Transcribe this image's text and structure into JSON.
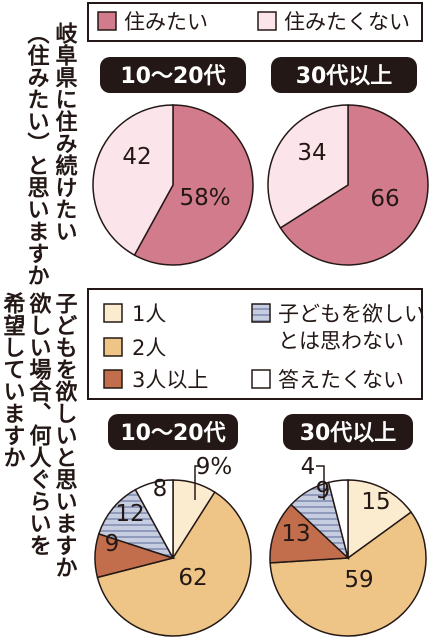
{
  "questions": {
    "q1_lines": [
      "岐阜県に住み続けたい",
      "（住みたい）と思いますか"
    ],
    "q2_lines": [
      "子どもを欲しいと思いますか",
      "欲しい場合、何人ぐらいを",
      "希望していますか"
    ]
  },
  "legend1": [
    {
      "label": "住みたい",
      "color": "#d27b8c"
    },
    {
      "label": "住みたくない",
      "color": "#fbe5ea"
    }
  ],
  "legend2": [
    {
      "label": "1人",
      "color": "#fbebcf"
    },
    {
      "label": "子どもを欲しい",
      "label2": "とは思わない",
      "color": "#c6cde1"
    },
    {
      "label": "2人",
      "color": "#eec586"
    },
    {
      "label": "3人以上",
      "color": "#c26e4c"
    },
    {
      "label": "答えたくない",
      "color": "#ffffff"
    }
  ],
  "chart_data": [
    {
      "type": "pie",
      "group": "10～20代",
      "categories": [
        "住みたい",
        "住みたくない"
      ],
      "values": [
        58,
        42
      ],
      "value_labels": [
        "58%",
        "42"
      ],
      "colors": [
        "#d27b8c",
        "#fbe5ea"
      ]
    },
    {
      "type": "pie",
      "group": "30代以上",
      "categories": [
        "住みたい",
        "住みたくない"
      ],
      "values": [
        66,
        34
      ],
      "value_labels": [
        "66",
        "34"
      ],
      "colors": [
        "#d27b8c",
        "#fbe5ea"
      ]
    },
    {
      "type": "pie",
      "group": "10～20代",
      "categories": [
        "1人",
        "2人",
        "3人以上",
        "子どもを欲しいとは思わない",
        "答えたくない"
      ],
      "values": [
        9,
        62,
        9,
        12,
        8
      ],
      "value_labels": [
        "9%",
        "62",
        "9",
        "12",
        "8"
      ],
      "colors": [
        "#fbebcf",
        "#eec586",
        "#c26e4c",
        "#c6cde1",
        "#ffffff"
      ]
    },
    {
      "type": "pie",
      "group": "30代以上",
      "categories": [
        "1人",
        "2人",
        "3人以上",
        "子どもを欲しいとは思わない",
        "答えたくない"
      ],
      "values": [
        15,
        59,
        13,
        9,
        4
      ],
      "value_labels": [
        "15",
        "59",
        "13",
        "9",
        "4"
      ],
      "colors": [
        "#fbebcf",
        "#eec586",
        "#c26e4c",
        "#c6cde1",
        "#ffffff"
      ]
    }
  ]
}
